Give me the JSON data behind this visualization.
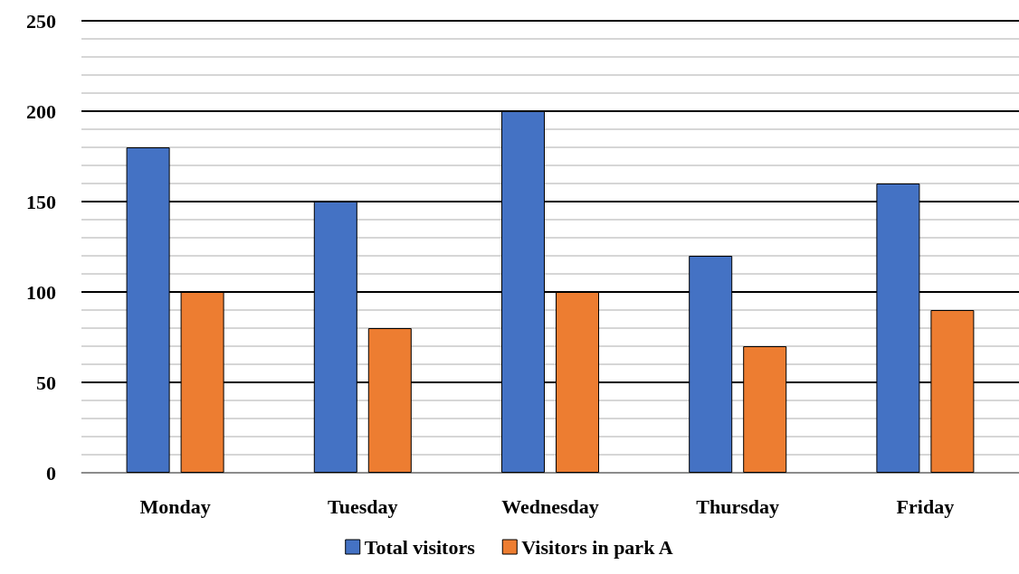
{
  "chart_data": {
    "type": "bar",
    "categories": [
      "Monday",
      "Tuesday",
      "Wednesday",
      "Thursday",
      "Friday"
    ],
    "series": [
      {
        "name": "Total visitors",
        "color": "#4472c4",
        "values": [
          180,
          150,
          200,
          120,
          160
        ]
      },
      {
        "name": "Visitors in park A",
        "color": "#ed7d31",
        "values": [
          100,
          80,
          100,
          70,
          90
        ]
      }
    ],
    "ylim": [
      0,
      250
    ],
    "yticks": [
      0,
      50,
      100,
      150,
      200,
      250
    ],
    "grid": true,
    "legend": "bottom"
  }
}
